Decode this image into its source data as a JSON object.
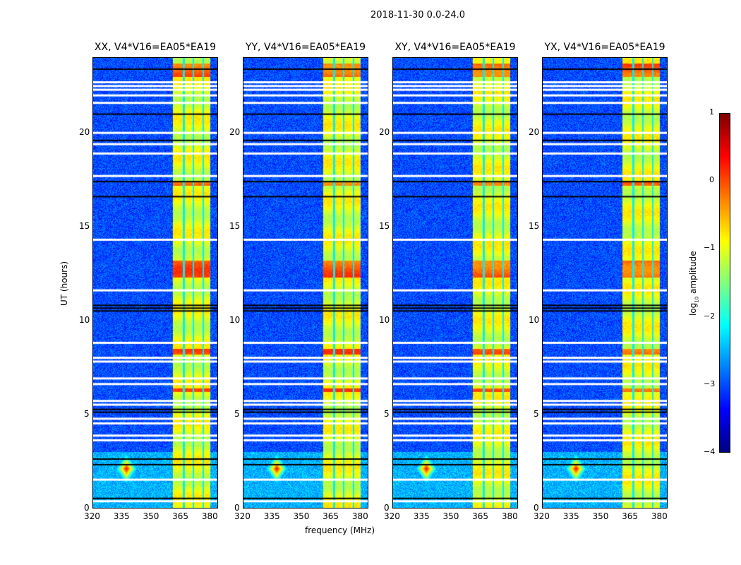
{
  "chart_data": {
    "type": "heatmap",
    "suptitle": "2018-11-30 0.0-24.0",
    "xlabel": "frequency (MHz)",
    "ylabel": "UT (hours)",
    "xlim": [
      320,
      384
    ],
    "ylim": [
      0,
      24
    ],
    "xticks": [
      320,
      335,
      350,
      365,
      380
    ],
    "yticks": [
      0,
      5,
      10,
      15,
      20
    ],
    "panels": [
      {
        "title": "XX, V4*V16=EA05*EA19"
      },
      {
        "title": "YY, V4*V16=EA05*EA19"
      },
      {
        "title": "XY, V4*V16=EA05*EA19"
      },
      {
        "title": "YX, V4*V16=EA05*EA19"
      }
    ],
    "colorbar": {
      "label": "log10 amplitude",
      "label_main": "log",
      "label_sub": "10",
      "label_rest": " amplitude",
      "range": [
        -4,
        1
      ],
      "ticks": [
        1,
        0,
        -1,
        -2,
        -3,
        -4
      ],
      "tick_labels": [
        "1",
        "0",
        "−1",
        "−2",
        "−3",
        "−4"
      ],
      "colormap": "jet"
    },
    "features": {
      "background_log_amp": -3.0,
      "rfi_band_mhz": [
        361,
        380
      ],
      "rfi_band_log_amp": -1.0,
      "rfi_gap_columns_mhz": [
        366.5,
        371.5,
        376.5
      ],
      "rfi_strong_periods_ut": [
        [
          12.3,
          13.2
        ],
        [
          23.0,
          23.7
        ],
        [
          8.2,
          8.5
        ],
        [
          17.2,
          17.4
        ],
        [
          6.2,
          6.4
        ]
      ],
      "point_source": {
        "freq_mhz": 337,
        "ut": 2.1,
        "log_amp": 0.4
      },
      "flagged_rows_ut": [
        0.35,
        1.5,
        3.6,
        3.85,
        4.5,
        4.75,
        5.5,
        5.7,
        6.6,
        6.9,
        7.8,
        8.0,
        8.8,
        11.6,
        14.3,
        17.7,
        18.9,
        19.4,
        20.0,
        21.6,
        22.0,
        22.3,
        22.5,
        22.7
      ],
      "dark_rows_ut": [
        0.5,
        2.3,
        2.6,
        5.1,
        5.25,
        10.5,
        10.65,
        10.8,
        16.6,
        17.4,
        19.6,
        21.0,
        23.4
      ]
    }
  }
}
